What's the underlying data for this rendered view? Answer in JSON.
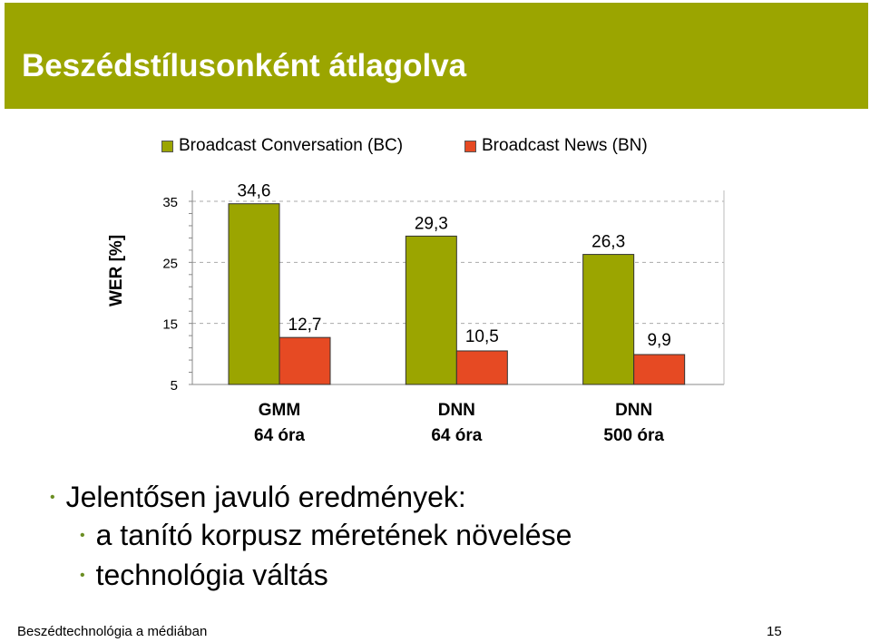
{
  "slide": {
    "title": "Beszédstílusonként átlagolva",
    "bullets": [
      "Jelentősen javuló eredmények:",
      "a tanító korpusz méretének növelése",
      "technológia váltás"
    ],
    "footer_left": "Beszédtechnológia a médiában",
    "page_number": "15"
  },
  "colors": {
    "title_bg": "#9ba500",
    "series_bc": "#9ba500",
    "series_bn": "#e64a23"
  },
  "chart_data": {
    "type": "bar",
    "title": "",
    "ylabel": "WER [%]",
    "xlabel": "",
    "ylim": [
      5,
      35
    ],
    "yticks": [
      "35",
      "25",
      "15",
      "5"
    ],
    "legend_position": "top",
    "grid": "horizontal dashed",
    "categories": [
      {
        "line1": "GMM",
        "line2": "64 óra"
      },
      {
        "line1": "DNN",
        "line2": "64 óra"
      },
      {
        "line1": "DNN",
        "line2": "500 óra"
      }
    ],
    "series": [
      {
        "name": "Broadcast Conversation (BC)",
        "values": [
          34.6,
          29.3,
          26.3
        ],
        "labels": [
          "34,6",
          "29,3",
          "26,3"
        ]
      },
      {
        "name": "Broadcast News (BN)",
        "values": [
          12.7,
          10.5,
          9.9
        ],
        "labels": [
          "12,7",
          "10,5",
          "9,9"
        ]
      }
    ]
  }
}
